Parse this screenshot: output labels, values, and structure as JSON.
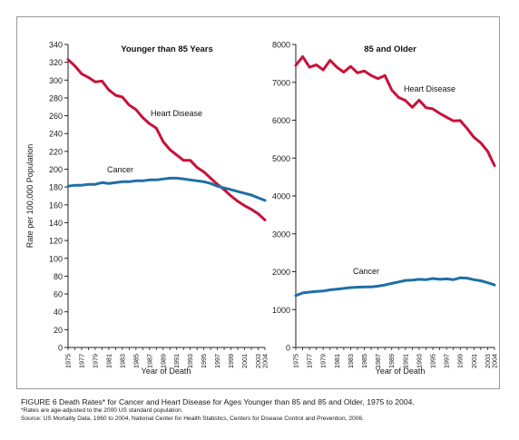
{
  "chart_data": [
    {
      "type": "line",
      "title": "Younger than 85 Years",
      "xlabel": "Year of Death",
      "ylabel": "Rate per 100,000 Population",
      "ylim": [
        0,
        340
      ],
      "yticks": [
        0,
        20,
        40,
        60,
        80,
        100,
        120,
        140,
        160,
        180,
        200,
        220,
        240,
        260,
        280,
        300,
        320,
        340
      ],
      "xlim": [
        1975,
        2004
      ],
      "xticks": [
        "1975",
        "1977",
        "1979",
        "1981",
        "1983",
        "1985",
        "1987",
        "1989",
        "1991",
        "1993",
        "1995",
        "1997",
        "1999",
        "2001",
        "2003",
        "2004"
      ],
      "x": [
        1975,
        1976,
        1977,
        1978,
        1979,
        1980,
        1981,
        1982,
        1983,
        1984,
        1985,
        1986,
        1987,
        1988,
        1989,
        1990,
        1991,
        1992,
        1993,
        1994,
        1995,
        1996,
        1997,
        1998,
        1999,
        2000,
        2001,
        2002,
        2003,
        2004
      ],
      "series": [
        {
          "name": "Heart Disease",
          "color": "#c8113a",
          "values": [
            323,
            316,
            307,
            303,
            298,
            299,
            289,
            283,
            281,
            272,
            267,
            258,
            251,
            246,
            231,
            222,
            216,
            210,
            210,
            202,
            197,
            190,
            183,
            177,
            170,
            164,
            159,
            155,
            150,
            143
          ]
        },
        {
          "name": "Cancer",
          "color": "#1e6fa8",
          "values": [
            181,
            182,
            182,
            183,
            183,
            185,
            184,
            185,
            186,
            186,
            187,
            187,
            188,
            188,
            189,
            190,
            190,
            189,
            188,
            187,
            186,
            184,
            181,
            179,
            177,
            175,
            173,
            171,
            168,
            165
          ]
        }
      ],
      "grid": false
    },
    {
      "type": "line",
      "title": "85 and Older",
      "xlabel": "Year of Death",
      "ylabel": "",
      "ylim": [
        0,
        8000
      ],
      "yticks": [
        0,
        1000,
        2000,
        3000,
        4000,
        5000,
        6000,
        7000,
        8000
      ],
      "xlim": [
        1975,
        2004
      ],
      "xticks": [
        "1975",
        "1977",
        "1979",
        "1981",
        "1983",
        "1985",
        "1987",
        "1989",
        "1991",
        "1993",
        "1995",
        "1997",
        "1999",
        "2001",
        "2003",
        "2004"
      ],
      "x": [
        1975,
        1976,
        1977,
        1978,
        1979,
        1980,
        1981,
        1982,
        1983,
        1984,
        1985,
        1986,
        1987,
        1988,
        1989,
        1990,
        1991,
        1992,
        1993,
        1994,
        1995,
        1996,
        1997,
        1998,
        1999,
        2000,
        2001,
        2002,
        2003,
        2004
      ],
      "series": [
        {
          "name": "Heart Disease",
          "color": "#c8113a",
          "values": [
            7450,
            7680,
            7400,
            7460,
            7330,
            7580,
            7400,
            7270,
            7420,
            7250,
            7300,
            7180,
            7100,
            7180,
            6800,
            6600,
            6520,
            6340,
            6530,
            6330,
            6300,
            6180,
            6080,
            5980,
            5990,
            5780,
            5550,
            5400,
            5180,
            4800
          ]
        },
        {
          "name": "Cancer",
          "color": "#1e6fa8",
          "values": [
            1370,
            1440,
            1460,
            1480,
            1490,
            1520,
            1540,
            1560,
            1580,
            1590,
            1600,
            1600,
            1620,
            1650,
            1690,
            1730,
            1770,
            1780,
            1800,
            1790,
            1820,
            1800,
            1810,
            1790,
            1840,
            1830,
            1790,
            1760,
            1710,
            1650
          ]
        }
      ],
      "grid": false
    }
  ],
  "caption": {
    "main": "FIGURE 6   Death Rates* for Cancer and Heart Disease for Ages Younger than 85 and 85 and Older, 1975 to 2004.",
    "note": "*Rates are age-adjusted to the 2000 US standard population.",
    "source": "Source: US Mortality Data, 1960 to 2004, National Center for Health Statistics, Centers for Disease Control and Prevention, 2006."
  }
}
